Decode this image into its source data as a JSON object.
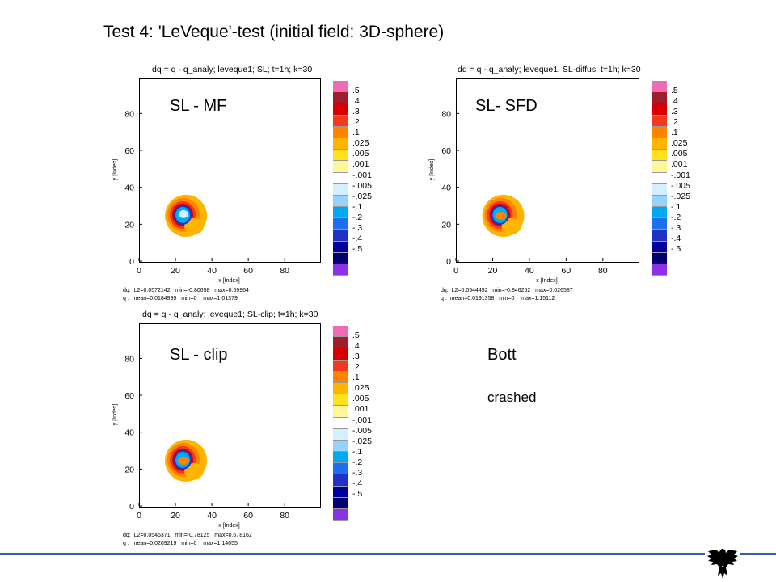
{
  "slide": {
    "title": "Test 4: 'LeVeque'-test (initial field: 3D-sphere)",
    "bott_label": "Bott",
    "crashed_label": "crashed"
  },
  "colorbar": {
    "labels": [
      ".5",
      ".4",
      ".3",
      ".2",
      ".1",
      ".025",
      ".005",
      ".001",
      "-.001",
      "-.005",
      "-.025",
      "-.1",
      "-.2",
      "-.3",
      "-.4",
      "-.5"
    ],
    "colors": [
      "#f06bb4",
      "#a01e2a",
      "#d60000",
      "#f03a1a",
      "#ff8200",
      "#ffb400",
      "#ffe11e",
      "#fff59b",
      "#ffffff",
      "#d2f0ff",
      "#96d2ff",
      "#00aaf0",
      "#1e6ef0",
      "#1e32c8",
      "#0000a0",
      "#00006e",
      "#8c32e6"
    ]
  },
  "chart_data": [
    {
      "type": "heatmap",
      "title": "dq = q - q_analy; leveque1; SL; t=1h; k=30",
      "overlay_label": "SL - MF",
      "xlabel": "x [Index]",
      "ylabel": "y [Index]",
      "x_ticks": [
        "0",
        "20",
        "40",
        "60",
        "80"
      ],
      "y_ticks": [
        "0",
        "20",
        "40",
        "60",
        "80"
      ],
      "xlim": [
        0,
        99
      ],
      "ylim": [
        0,
        99
      ],
      "blob": {
        "center_x": 24,
        "center_y": 25,
        "inner": "light-cyan"
      },
      "stats_dq": "dq:  L2=0.0572142   min=-0.80658   max=0.59964",
      "stats_q": "q :  mean=0.0184995   min=0    max=1.01379"
    },
    {
      "type": "heatmap",
      "title": "dq = q - q_analy; leveque1; SL-diffus; t=1h; k=30",
      "overlay_label": "SL- SFD",
      "xlabel": "x [Index]",
      "ylabel": "y [Index]",
      "x_ticks": [
        "0",
        "20",
        "40",
        "60",
        "80"
      ],
      "y_ticks": [
        "0",
        "20",
        "40",
        "60",
        "80"
      ],
      "xlim": [
        0,
        99
      ],
      "ylim": [
        0,
        99
      ],
      "blob": {
        "center_x": 24,
        "center_y": 25,
        "inner": "orange"
      },
      "stats_dq": "dq:  L2=0.0544452   min=-0.846252   max=0.626587",
      "stats_q": "q :  mean=0.0191358   min=0    max=1.15112"
    },
    {
      "type": "heatmap",
      "title": "dq = q - q_analy; leveque1; SL-clip; t=1h; k=30",
      "overlay_label": "SL - clip",
      "xlabel": "x [Index]",
      "ylabel": "y [Index]",
      "x_ticks": [
        "0",
        "20",
        "40",
        "60",
        "80"
      ],
      "y_ticks": [
        "0",
        "20",
        "40",
        "60",
        "80"
      ],
      "xlim": [
        0,
        99
      ],
      "ylim": [
        0,
        99
      ],
      "blob": {
        "center_x": 24,
        "center_y": 25,
        "inner": "orange"
      },
      "stats_dq": "dq:  L2=0.0546371   min=-0.78125   max=0.678162",
      "stats_q": "q :  mean=0.0209219   min=0    max=1.14655"
    }
  ]
}
